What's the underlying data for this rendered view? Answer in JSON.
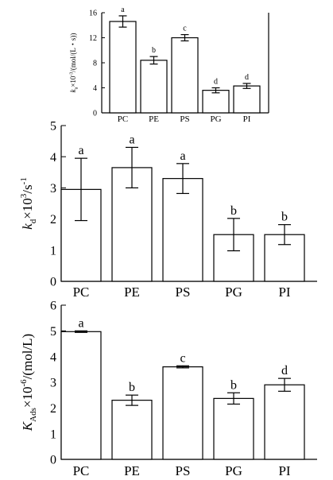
{
  "chart_data": [
    {
      "type": "bar",
      "ylabel": "k_a×10^-3/(mol/(L·s))",
      "ylabel_parts": [
        "k",
        "a",
        "×10",
        "-3",
        "/(mol/(L・s))"
      ],
      "categories": [
        "PC",
        "PE",
        "PS",
        "PG",
        "PI"
      ],
      "values": [
        14.6,
        8.4,
        12.0,
        3.6,
        4.3
      ],
      "errors": [
        0.9,
        0.6,
        0.5,
        0.4,
        0.4
      ],
      "letters": [
        "a",
        "b",
        "c",
        "d",
        "d"
      ],
      "ylim": [
        0,
        16
      ],
      "yticks": [
        "0",
        "4",
        "8",
        "12",
        "16"
      ],
      "grid": false
    },
    {
      "type": "bar",
      "ylabel": "k_d×10^3/s^-1",
      "ylabel_parts": [
        "k",
        "d",
        "×10",
        "3",
        "/s",
        "-1"
      ],
      "categories": [
        "PC",
        "PE",
        "PS",
        "PG",
        "PI"
      ],
      "values": [
        2.95,
        3.65,
        3.3,
        1.5,
        1.5
      ],
      "errors": [
        1.0,
        0.65,
        0.48,
        0.52,
        0.32
      ],
      "letters": [
        "a",
        "a",
        "a",
        "b",
        "b"
      ],
      "ylim": [
        0,
        5
      ],
      "yticks": [
        "0",
        "1",
        "2",
        "3",
        "4",
        "5"
      ],
      "grid": false
    },
    {
      "type": "bar",
      "ylabel": "K_Ads×10^-6/(mol/L)",
      "ylabel_parts": [
        "K",
        "Ads",
        "×10",
        "-6",
        "/(mol/L)"
      ],
      "categories": [
        "PC",
        "PE",
        "PS",
        "PG",
        "PI"
      ],
      "values": [
        4.97,
        2.3,
        3.6,
        2.37,
        2.9
      ],
      "errors": [
        0.03,
        0.2,
        0.04,
        0.22,
        0.25
      ],
      "letters": [
        "a",
        "b",
        "c",
        "b",
        "d"
      ],
      "ylim": [
        0,
        6
      ],
      "yticks": [
        "0",
        "1",
        "2",
        "3",
        "4",
        "5",
        "6"
      ],
      "grid": false
    }
  ]
}
